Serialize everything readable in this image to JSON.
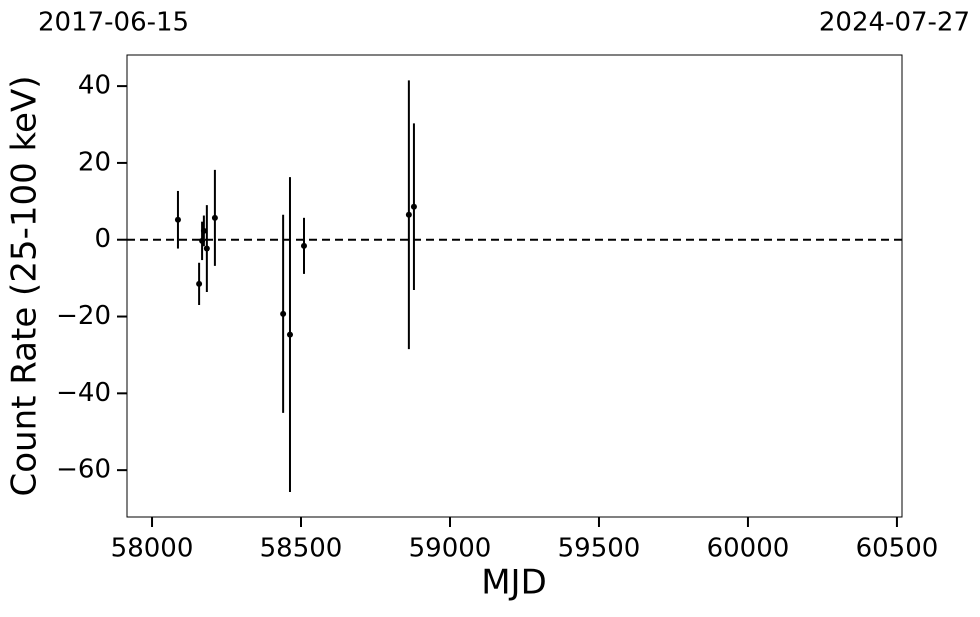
{
  "chart_data": {
    "type": "errorbar-scatter",
    "top_labels": [
      "2017-06-15",
      "2024-07-27"
    ],
    "xlabel": "MJD",
    "ylabel": "Count Rate (25-100 keV)",
    "x": [
      58087,
      58158,
      58168,
      58174,
      58184,
      58211,
      58440,
      58463,
      58510,
      58862,
      58879
    ],
    "values": [
      5.2,
      -11.5,
      -0.3,
      2.3,
      -2.3,
      5.7,
      -19.3,
      -24.7,
      -1.6,
      6.5,
      8.6
    ],
    "errors": [
      7.5,
      5.5,
      5,
      4,
      11.3,
      12.5,
      25.8,
      41,
      7.3,
      35,
      21.7
    ],
    "color": "#000000",
    "hline": 0,
    "xlim": [
      57916,
      60517
    ],
    "ylim": [
      -72.2,
      48.1
    ],
    "xticks": [
      58000,
      58500,
      59000,
      59500,
      60000,
      60500
    ],
    "yticks": [
      40,
      20,
      0,
      {
        "value": -20,
        "label": "−20"
      },
      {
        "value": -40,
        "label": "−40"
      },
      {
        "value": -60,
        "label": "−60"
      }
    ]
  }
}
